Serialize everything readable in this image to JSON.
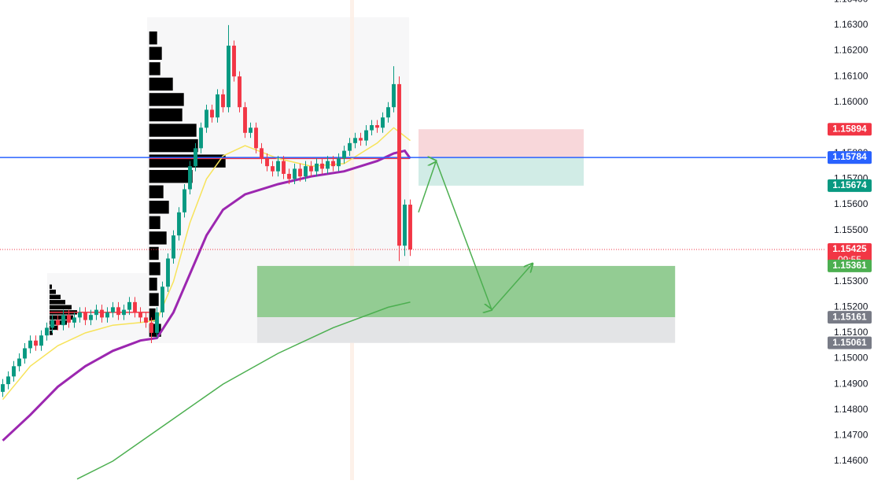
{
  "chart_data": {
    "type": "candlestick",
    "xlim": [
      -0.5,
      149.5
    ],
    "ylim": [
      1.14526,
      1.16398
    ],
    "yticks": [
      {
        "value": 1.164,
        "label": "1.16400"
      },
      {
        "value": 1.163,
        "label": "1.16300"
      },
      {
        "value": 1.162,
        "label": "1.16200"
      },
      {
        "value": 1.161,
        "label": "1.16100"
      },
      {
        "value": 1.16,
        "label": "1.16000"
      },
      {
        "value": 1.159,
        "label": "1.15900"
      },
      {
        "value": 1.158,
        "label": "1.15800"
      },
      {
        "value": 1.157,
        "label": "1.15700"
      },
      {
        "value": 1.156,
        "label": "1.15600"
      },
      {
        "value": 1.155,
        "label": "1.15500"
      },
      {
        "value": 1.154,
        "label": "1.15400"
      },
      {
        "value": 1.153,
        "label": "1.15300"
      },
      {
        "value": 1.152,
        "label": "1.15200"
      },
      {
        "value": 1.151,
        "label": "1.15100"
      },
      {
        "value": 1.15,
        "label": "1.15000"
      },
      {
        "value": 1.149,
        "label": "1.14900"
      },
      {
        "value": 1.148,
        "label": "1.14800"
      },
      {
        "value": 1.147,
        "label": "1.14700"
      },
      {
        "value": 1.146,
        "label": "1.14600"
      }
    ],
    "up_color": "#089981",
    "down_color": "#f23645",
    "open": [
      1.1487,
      1.149,
      1.1493,
      1.1497,
      1.15,
      1.1504,
      1.1507,
      1.1505,
      1.1509,
      1.1512,
      1.1515,
      1.1513,
      1.1517,
      1.1514,
      1.1516,
      1.1518,
      1.1515,
      1.1517,
      1.1519,
      1.1516,
      1.1518,
      1.152,
      1.1517,
      1.1519,
      1.1522,
      1.1518,
      1.1516,
      1.1514,
      1.151,
      1.1518,
      1.1528,
      1.1539,
      1.1548,
      1.1557,
      1.1566,
      1.1575,
      1.1582,
      1.159,
      1.1597,
      1.1594,
      1.1603,
      1.1598,
      1.1622,
      1.161,
      1.1598,
      1.1588,
      1.159,
      1.1582,
      1.1578,
      1.1575,
      1.1573,
      1.1577,
      1.1572,
      1.157,
      1.1574,
      1.1571,
      1.1575,
      1.1573,
      1.1576,
      1.1574,
      1.1577,
      1.1575,
      1.1578,
      1.1581,
      1.1584,
      1.1586,
      1.1585,
      1.1589,
      1.1591,
      1.159,
      1.1594,
      1.1598,
      1.1607,
      1.1544,
      1.156
    ],
    "high": [
      1.1492,
      1.1495,
      1.1499,
      1.1502,
      1.1506,
      1.1509,
      1.1509,
      1.1511,
      1.1514,
      1.1517,
      1.1517,
      1.1519,
      1.1519,
      1.1518,
      1.152,
      1.152,
      1.1519,
      1.1521,
      1.1521,
      1.152,
      1.1522,
      1.1522,
      1.1521,
      1.1524,
      1.1524,
      1.152,
      1.1518,
      1.1516,
      1.152,
      1.153,
      1.1541,
      1.155,
      1.1559,
      1.1568,
      1.1577,
      1.1584,
      1.1592,
      1.1599,
      1.1599,
      1.1605,
      1.1605,
      1.163,
      1.1624,
      1.1612,
      1.16,
      1.1592,
      1.1592,
      1.1584,
      1.158,
      1.1577,
      1.1579,
      1.1579,
      1.1574,
      1.1576,
      1.1576,
      1.1577,
      1.1577,
      1.1578,
      1.1578,
      1.1579,
      1.1579,
      1.158,
      1.1583,
      1.1586,
      1.1588,
      1.1588,
      1.1591,
      1.1593,
      1.1593,
      1.1596,
      1.16,
      1.1614,
      1.161,
      1.1562,
      1.1562
    ],
    "low": [
      1.1485,
      1.1488,
      1.1491,
      1.1495,
      1.1498,
      1.1502,
      1.1503,
      1.1503,
      1.1507,
      1.151,
      1.1511,
      1.1511,
      1.1512,
      1.1512,
      1.1514,
      1.1513,
      1.1513,
      1.1515,
      1.1514,
      1.1514,
      1.1516,
      1.1515,
      1.1515,
      1.1517,
      1.1516,
      1.1514,
      1.1512,
      1.1506,
      1.1508,
      1.1516,
      1.1526,
      1.1537,
      1.1546,
      1.1555,
      1.1564,
      1.1573,
      1.158,
      1.1588,
      1.1592,
      1.1592,
      1.1596,
      1.1596,
      1.1608,
      1.1596,
      1.1586,
      1.1586,
      1.158,
      1.1576,
      1.1573,
      1.1571,
      1.1571,
      1.157,
      1.1568,
      1.1568,
      1.1569,
      1.1569,
      1.1571,
      1.1571,
      1.1572,
      1.1572,
      1.1573,
      1.1573,
      1.1576,
      1.1579,
      1.1582,
      1.1583,
      1.1583,
      1.1587,
      1.1588,
      1.1588,
      1.1592,
      1.1596,
      1.1538,
      1.154,
      1.154
    ],
    "close": [
      1.149,
      1.1493,
      1.1497,
      1.15,
      1.1504,
      1.1507,
      1.1505,
      1.1509,
      1.1512,
      1.1515,
      1.1513,
      1.1517,
      1.1514,
      1.1516,
      1.1518,
      1.1515,
      1.1517,
      1.1519,
      1.1516,
      1.1518,
      1.152,
      1.1517,
      1.1519,
      1.1522,
      1.1518,
      1.1516,
      1.1514,
      1.151,
      1.1518,
      1.1528,
      1.1539,
      1.1548,
      1.1557,
      1.1566,
      1.1575,
      1.1582,
      1.159,
      1.1597,
      1.1594,
      1.1603,
      1.1598,
      1.1622,
      1.161,
      1.1598,
      1.1588,
      1.159,
      1.1582,
      1.1578,
      1.1575,
      1.1573,
      1.1577,
      1.1572,
      1.157,
      1.1574,
      1.1571,
      1.1575,
      1.1573,
      1.1576,
      1.1574,
      1.1577,
      1.1575,
      1.1578,
      1.1581,
      1.1584,
      1.1586,
      1.1585,
      1.1589,
      1.1591,
      1.159,
      1.1594,
      1.1598,
      1.1607,
      1.1544,
      1.156,
      1.15425
    ],
    "series": [
      {
        "color": "#f7e35a",
        "x": [
          0,
          5,
          10,
          15,
          20,
          25,
          28,
          31,
          34,
          37,
          40,
          44,
          50,
          56,
          62,
          68,
          71,
          74
        ],
        "values": [
          1.1484,
          1.1497,
          1.1505,
          1.151,
          1.1513,
          1.1514,
          1.1515,
          1.153,
          1.1553,
          1.157,
          1.1579,
          1.1583,
          1.1578,
          1.1575,
          1.1576,
          1.1584,
          1.159,
          1.1585
        ]
      },
      {
        "color": "#9c27b0",
        "x": [
          0,
          5,
          10,
          15,
          20,
          25,
          28,
          31,
          34,
          37,
          40,
          44,
          50,
          56,
          62,
          68,
          71,
          73,
          74
        ],
        "values": [
          1.1468,
          1.1478,
          1.1489,
          1.1497,
          1.1503,
          1.1507,
          1.1508,
          1.1518,
          1.1533,
          1.1548,
          1.1558,
          1.1564,
          1.1568,
          1.1571,
          1.1573,
          1.1577,
          1.158,
          1.1581,
          1.1578
        ]
      },
      {
        "color": "#4caf50",
        "x": [
          13.5,
          20,
          30,
          40,
          50,
          60,
          70,
          74
        ],
        "values": [
          1.1453,
          1.146,
          1.1475,
          1.149,
          1.1502,
          1.1512,
          1.152,
          1.1522
        ]
      }
    ],
    "volume_profiles": [
      {
        "x": 26.6,
        "poc": 1.1578,
        "poc_end": 73.8,
        "prices": [
          1.1511,
          1.1517,
          1.1523,
          1.1529,
          1.1535,
          1.1541,
          1.1547,
          1.1553,
          1.1559,
          1.1565,
          1.1571,
          1.1577,
          1.1583,
          1.1589,
          1.1595,
          1.1601,
          1.1607,
          1.1613,
          1.1619,
          1.1625
        ],
        "volumes": [
          15,
          8,
          12,
          10,
          14,
          12,
          22,
          14,
          25,
          18,
          55,
          97,
          62,
          60,
          42,
          44,
          30,
          14,
          16,
          10
        ]
      },
      {
        "x": 8.5,
        "poc": 1.1518,
        "poc_end": 26.6,
        "prices": [
          1.151,
          1.1512,
          1.1514,
          1.1516,
          1.1518,
          1.152,
          1.1522,
          1.1524,
          1.1526,
          1.1528
        ],
        "volumes": [
          4,
          10,
          22,
          30,
          35,
          28,
          20,
          14,
          8,
          3
        ]
      }
    ],
    "zones": [
      {
        "x": [
          75.5,
          105.5
        ],
        "y": [
          1.15784,
          1.15894
        ],
        "color": "#f8d7da"
      },
      {
        "x": [
          75.5,
          105.5
        ],
        "y": [
          1.15674,
          1.15784
        ],
        "color": "#d1ece6"
      },
      {
        "x": [
          46.2,
          122.1
        ],
        "y": [
          1.15161,
          1.15361
        ],
        "color": "#93cc93"
      },
      {
        "x": [
          46.2,
          122.1
        ],
        "y": [
          1.15061,
          1.15161
        ],
        "color": "#e3e4e6"
      }
    ],
    "projection": {
      "color": "#4caf50",
      "x": [
        75.5,
        78.7,
        88.8,
        96.2
      ],
      "values": [
        1.1557,
        1.1577,
        1.1519,
        1.1537
      ]
    },
    "price_line": {
      "value": 1.15784,
      "color": "#2962ff"
    },
    "current_price": {
      "value": 1.15425,
      "color": "#f23645"
    },
    "badges": [
      {
        "value": 1.15894,
        "color": "#f23645"
      },
      {
        "value": 1.15784,
        "color": "#787b86"
      },
      {
        "value": 1.15784,
        "color": "#2962ff"
      },
      {
        "value": 1.15674,
        "color": "#089981"
      },
      {
        "value": 1.15425,
        "color": "#f23645",
        "countdown": "09:55"
      },
      {
        "value": 1.15361,
        "color": "#4caf50"
      },
      {
        "value": 1.15161,
        "color": "#787b86"
      },
      {
        "value": 1.15061,
        "color": "#787b86"
      }
    ]
  }
}
